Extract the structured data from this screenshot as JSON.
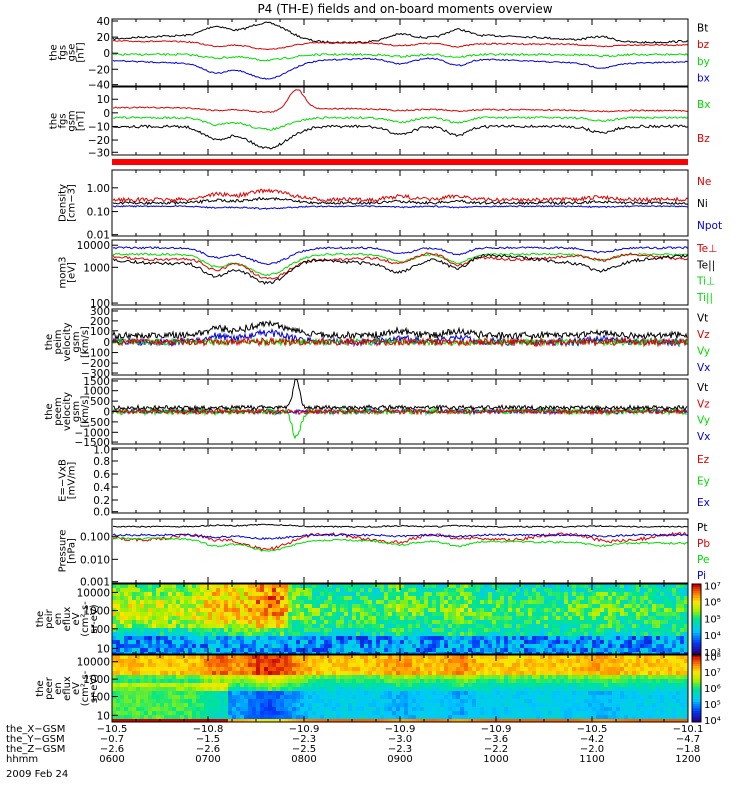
{
  "title": "P4 (TH-E) fields and on-board moments overview",
  "colors": {
    "black": "#000000",
    "red": "#e00000",
    "green": "#00dd00",
    "blue": "#0000e0"
  },
  "panels": [
    {
      "ylabel": [
        "the",
        "fgs",
        "gse",
        "[nT]"
      ],
      "ticks": [
        "40",
        "20",
        "0",
        "−20",
        "−40"
      ],
      "tick_fracs": [
        0.03,
        0.27,
        0.51,
        0.75,
        0.98
      ],
      "legend": [
        {
          "text": "Bt",
          "color": "#000000"
        },
        {
          "text": "bz",
          "color": "#e00000"
        },
        {
          "text": "by",
          "color": "#00dd00"
        },
        {
          "text": "bx",
          "color": "#0000e0"
        }
      ]
    },
    {
      "ylabel": [
        "the",
        "fgs",
        "gsm",
        "[nT]"
      ],
      "ticks": [
        "10",
        "0",
        "−10",
        "−20",
        "−30"
      ],
      "tick_fracs": [
        0.18,
        0.38,
        0.58,
        0.78,
        0.96
      ],
      "legend": [
        {
          "text": "Bx",
          "color": "#00dd00"
        },
        {
          "text": "Bz",
          "color": "#e00000"
        }
      ]
    },
    {
      "ylabel": [
        "Density",
        "[cm−3]"
      ],
      "ticks": [
        "1.00",
        "0.10",
        "0.01"
      ],
      "tick_fracs": [
        0.27,
        0.63,
        0.98
      ],
      "legend": [
        {
          "text": "Ne",
          "color": "#e00000"
        },
        {
          "text": "Ni",
          "color": "#000000"
        },
        {
          "text": "Npot",
          "color": "#0000e0"
        }
      ]
    },
    {
      "ylabel": [
        "mom3",
        "[eV]"
      ],
      "ticks": [
        "10000",
        "1000",
        "100"
      ],
      "tick_fracs": [
        0.08,
        0.42,
        0.97
      ],
      "legend": [
        {
          "text": "Te⊥",
          "color": "#e00000"
        },
        {
          "text": "Te||",
          "color": "#000000"
        },
        {
          "text": "Ti⊥",
          "color": "#00dd00"
        },
        {
          "text": "Ti||",
          "color": "#00dd00"
        }
      ]
    },
    {
      "ylabel": [
        "the",
        "peim",
        "velocity",
        "gsm",
        "[km/s]"
      ],
      "ticks": [
        "300",
        "200",
        "100",
        "0",
        "−100",
        "−200",
        "−300"
      ],
      "tick_fracs": [
        0.03,
        0.18,
        0.33,
        0.5,
        0.66,
        0.82,
        0.97
      ],
      "legend": [
        {
          "text": "Vt",
          "color": "#000000"
        },
        {
          "text": "Vz",
          "color": "#e00000"
        },
        {
          "text": "Vy",
          "color": "#00dd00"
        },
        {
          "text": "Vx",
          "color": "#0000e0"
        }
      ]
    },
    {
      "ylabel": [
        "the",
        "peem",
        "velocity",
        "gsm",
        "[km/s]"
      ],
      "ticks": [
        "1500",
        "1000",
        "500",
        "0",
        "−500",
        "−1000",
        "−1500"
      ],
      "tick_fracs": [
        0.03,
        0.18,
        0.34,
        0.5,
        0.66,
        0.82,
        0.97
      ],
      "legend": [
        {
          "text": "Vt",
          "color": "#000000"
        },
        {
          "text": "Vz",
          "color": "#e00000"
        },
        {
          "text": "Vy",
          "color": "#00dd00"
        },
        {
          "text": "Vx",
          "color": "#0000e0"
        }
      ]
    },
    {
      "ylabel": [
        "E=−VxB",
        "[mV/m]"
      ],
      "ticks": [
        "1.0",
        "0.8",
        "0.6",
        "0.4",
        "0.2",
        "0.0"
      ],
      "tick_fracs": [
        0.02,
        0.2,
        0.4,
        0.6,
        0.8,
        0.98
      ],
      "legend": [
        {
          "text": "Ez",
          "color": "#e00000"
        },
        {
          "text": "Ey",
          "color": "#00dd00"
        },
        {
          "text": "Ex",
          "color": "#0000e0"
        }
      ]
    },
    {
      "ylabel": [
        "Pressure",
        "[nPa]"
      ],
      "ticks": [
        "0.100",
        "0.010",
        "0.001"
      ],
      "tick_fracs": [
        0.27,
        0.63,
        0.98
      ],
      "legend": [
        {
          "text": "Pt",
          "color": "#000000"
        },
        {
          "text": "Pb",
          "color": "#e00000"
        },
        {
          "text": "Pe",
          "color": "#00dd00"
        },
        {
          "text": "Pi",
          "color": "#0000e0"
        }
      ]
    },
    {
      "ylabel": [
        "the",
        "peir",
        "en",
        "eflux",
        "eV",
        "(cm²-s-",
        "sr-eV)"
      ],
      "ticks": [
        "10000",
        "1000",
        "100",
        "10"
      ],
      "tick_fracs": [
        0.12,
        0.38,
        0.64,
        0.92
      ],
      "colorbar_ticks": [
        "10⁷",
        "10⁶",
        "10⁵",
        "10⁴",
        "10³"
      ],
      "colorbar_fracs": [
        0.02,
        0.25,
        0.49,
        0.73,
        0.97
      ]
    },
    {
      "ylabel": [
        "the",
        "peer",
        "en",
        "eflux",
        "eV",
        "(cm²-s-",
        "sr-eV)"
      ],
      "ticks": [
        "10000",
        "1000",
        "100",
        "10"
      ],
      "tick_fracs": [
        0.1,
        0.36,
        0.62,
        0.9
      ],
      "colorbar_ticks": [
        "10⁸",
        "10⁷",
        "10⁶",
        "10⁵",
        "10⁴"
      ],
      "colorbar_fracs": [
        0.02,
        0.25,
        0.49,
        0.73,
        0.97
      ]
    }
  ],
  "footer": {
    "rows": [
      {
        "label": "the_X−GSM",
        "values": [
          "−10.5",
          "−10.8",
          "−10.9",
          "−10.9",
          "−10.9",
          "−10.5",
          "−10.1"
        ]
      },
      {
        "label": "the_Y−GSM",
        "values": [
          "−0.7",
          "−1.5",
          "−2.3",
          "−3.0",
          "−3.6",
          "−4.2",
          "−4.7"
        ]
      },
      {
        "label": "the_Z−GSM",
        "values": [
          "−2.6",
          "−2.6",
          "−2.5",
          "−2.3",
          "−2.2",
          "−2.0",
          "−1.8"
        ]
      },
      {
        "label": "hhmm",
        "values": [
          "0600",
          "0700",
          "0800",
          "0900",
          "1000",
          "1100",
          "1200"
        ]
      }
    ],
    "date": "2009 Feb 24"
  },
  "chart_data": {
    "type": "line",
    "title": "P4 (TH-E) fields and on-board moments overview",
    "x": [
      "0600",
      "0700",
      "0800",
      "0900",
      "1000",
      "1100",
      "1200"
    ],
    "grid": false,
    "series": [
      {
        "name": "Bt",
        "values": [
          14,
          18,
          30,
          15,
          20,
          18,
          22
        ]
      },
      {
        "name": "bz",
        "values": [
          13,
          10,
          4,
          4,
          2,
          3,
          5
        ]
      },
      {
        "name": "by",
        "values": [
          -1,
          -2,
          -5,
          -4,
          -5,
          -4,
          -6
        ]
      },
      {
        "name": "bx",
        "values": [
          -8,
          -15,
          -25,
          -10,
          -14,
          -12,
          -15
        ]
      },
      {
        "name": "Ne",
        "values": [
          0.4,
          0.6,
          0.8,
          0.4,
          0.5,
          0.5,
          0.7
        ]
      },
      {
        "name": "Ni",
        "values": [
          0.3,
          0.4,
          0.5,
          0.3,
          0.25,
          0.3,
          0.3
        ]
      },
      {
        "name": "Npot",
        "values": [
          0.3,
          0.35,
          0.3,
          0.25,
          0.2,
          0.25,
          0.25
        ]
      },
      {
        "name": "Pt",
        "values": [
          0.16,
          0.17,
          0.2,
          0.16,
          0.18,
          0.17,
          0.18
        ]
      },
      {
        "name": "Pb",
        "values": [
          0.1,
          0.07,
          0.04,
          0.05,
          0.1,
          0.1,
          0.11
        ]
      },
      {
        "name": "Pe",
        "values": [
          0.08,
          0.05,
          0.03,
          0.04,
          0.05,
          0.05,
          0.04
        ]
      },
      {
        "name": "Pi",
        "values": [
          0.1,
          0.12,
          0.1,
          0.1,
          0.12,
          0.12,
          0.13
        ]
      }
    ]
  }
}
